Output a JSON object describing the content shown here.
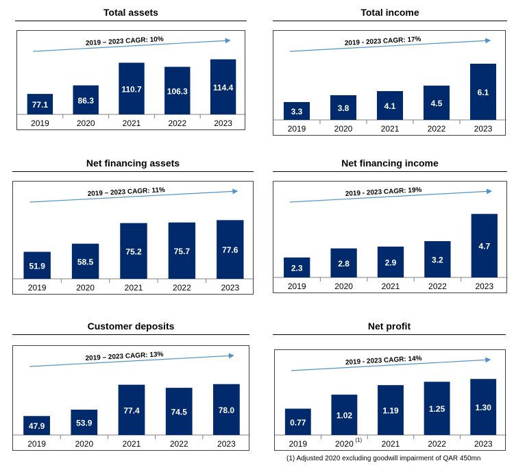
{
  "colors": {
    "bar": "#002a6c",
    "arrow": "#4f93c7",
    "bar_label": "#ffffff",
    "text": "#000000"
  },
  "chart_data": [
    {
      "type": "bar",
      "title": "Total assets",
      "categories": [
        "2019",
        "2020",
        "2021",
        "2022",
        "2023"
      ],
      "values": [
        77.1,
        86.3,
        110.7,
        106.3,
        114.4
      ],
      "labels": [
        "77.1",
        "86.3",
        "110.7",
        "106.3",
        "114.4"
      ],
      "annotation": "2019 – 2023 CAGR: 10%",
      "ylim": [
        55,
        120
      ]
    },
    {
      "type": "bar",
      "title": "Total income",
      "categories": [
        "2019",
        "2020",
        "2021",
        "2022",
        "2023"
      ],
      "values": [
        3.3,
        3.8,
        4.1,
        4.5,
        6.1
      ],
      "labels": [
        "3.3",
        "3.8",
        "4.1",
        "4.5",
        "6.1"
      ],
      "annotation": "2019 - 2023 CAGR: 17%",
      "ylim": [
        2,
        6.8
      ]
    },
    {
      "type": "bar",
      "title": "Net financing assets",
      "categories": [
        "2019",
        "2020",
        "2021",
        "2022",
        "2023"
      ],
      "values": [
        51.9,
        58.5,
        75.2,
        75.7,
        77.6
      ],
      "labels": [
        "51.9",
        "58.5",
        "75.2",
        "75.7",
        "77.6"
      ],
      "annotation": "2019 – 2023 CAGR: 11%",
      "ylim": [
        30,
        90
      ]
    },
    {
      "type": "bar",
      "title": "Net financing income",
      "categories": [
        "2019",
        "2020",
        "2021",
        "2022",
        "2023"
      ],
      "values": [
        2.3,
        2.8,
        2.9,
        3.2,
        4.7
      ],
      "labels": [
        "2.3",
        "2.8",
        "2.9",
        "3.2",
        "4.7"
      ],
      "annotation": "2019 - 2023 CAGR: 19%",
      "ylim": [
        1.2,
        5.2
      ]
    },
    {
      "type": "bar",
      "title": "Customer deposits",
      "categories": [
        "2019",
        "2020",
        "2021",
        "2022",
        "2023"
      ],
      "values": [
        47.9,
        53.9,
        77.4,
        74.5,
        78.0
      ],
      "labels": [
        "47.9",
        "53.9",
        "77.4",
        "74.5",
        "78.0"
      ],
      "annotation": "2019 – 2023 CAGR: 13%",
      "ylim": [
        30,
        92
      ]
    },
    {
      "type": "bar",
      "title": "Net profit",
      "categories": [
        "2019",
        "2020",
        "2021",
        "2022",
        "2023"
      ],
      "category_superscripts": [
        "",
        "(1)",
        "",
        "",
        ""
      ],
      "values": [
        0.77,
        1.02,
        1.19,
        1.25,
        1.3
      ],
      "labels": [
        "0.77",
        "1.02",
        "1.19",
        "1.25",
        "1.30"
      ],
      "annotation": "2019 - 2023 CAGR: 14%",
      "ylim": [
        0.3,
        1.4
      ]
    }
  ],
  "footnote": "(1)  Adjusted 2020 excluding goodwill impairment of QAR 450mn"
}
